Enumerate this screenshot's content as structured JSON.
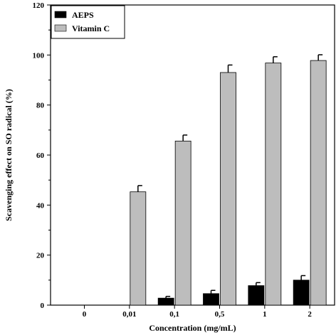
{
  "chart_data": {
    "type": "bar",
    "xlabel": "Concentration (mg/mL)",
    "ylabel": "Scavenging effect on SO radical (%)",
    "categories": [
      "0",
      "0,01",
      "0,1",
      "0,5",
      "1",
      "2"
    ],
    "ylim": [
      0,
      120
    ],
    "yticks": [
      "0",
      "20",
      "40",
      "60",
      "80",
      "100",
      "120"
    ],
    "grid": false,
    "legend_position": "top-left",
    "series": [
      {
        "name": "AEPS",
        "color": "#000000",
        "values": [
          0,
          0,
          2.8,
          4.6,
          7.8,
          10.0
        ],
        "errors": [
          0,
          0,
          0.7,
          1.3,
          1.2,
          1.8
        ]
      },
      {
        "name": "Vitamin C",
        "color": "#bdbdbd",
        "values": [
          0,
          45.3,
          65.6,
          93.0,
          96.8,
          97.8
        ],
        "errors": [
          0,
          2.5,
          2.4,
          3.0,
          2.5,
          2.3
        ]
      }
    ]
  }
}
